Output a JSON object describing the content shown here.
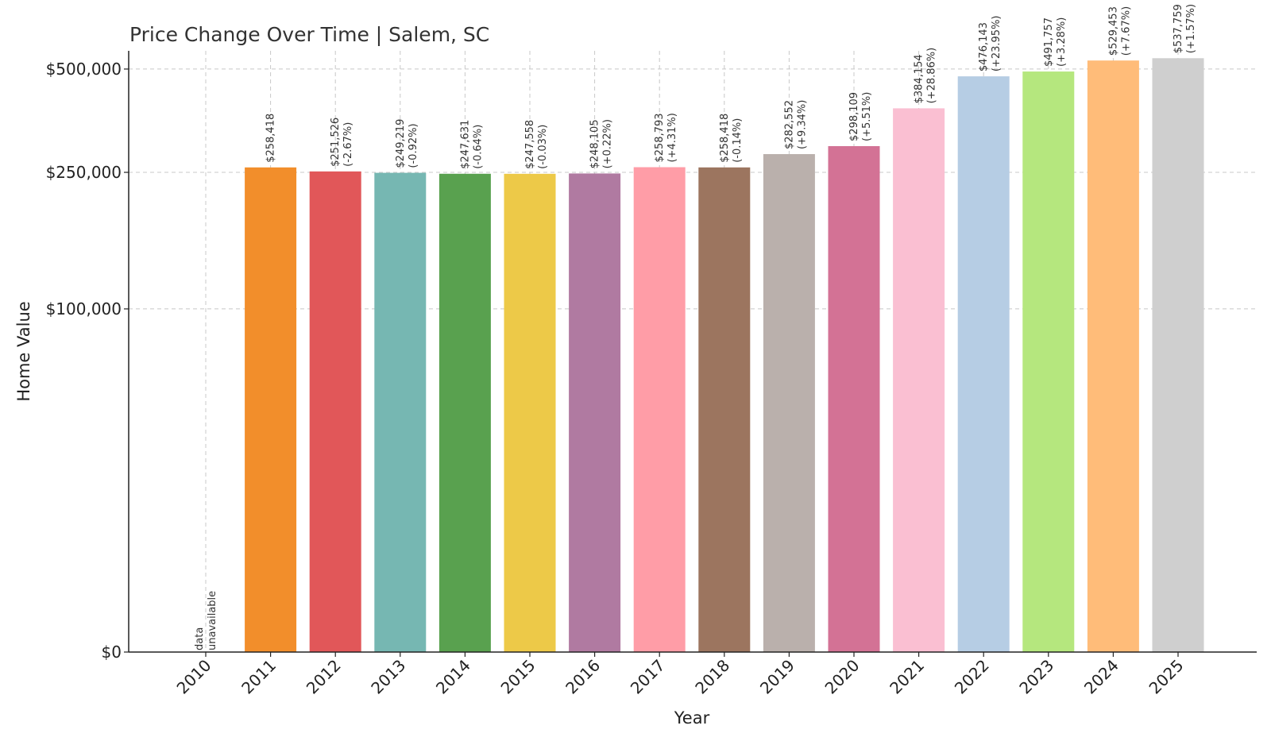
{
  "chart_data": {
    "type": "bar",
    "title": "Price Change Over Time | Salem, SC",
    "xlabel": "Year",
    "ylabel": "Home Value",
    "categories": [
      "2010",
      "2011",
      "2012",
      "2013",
      "2014",
      "2015",
      "2016",
      "2017",
      "2018",
      "2019",
      "2020",
      "2021",
      "2022",
      "2023",
      "2024",
      "2025"
    ],
    "values": [
      null,
      258418,
      251526,
      249219,
      247631,
      247558,
      248105,
      258793,
      258418,
      282552,
      298109,
      384154,
      476143,
      491757,
      529453,
      537759
    ],
    "value_labels": [
      "",
      "$258,418",
      "$251,526",
      "$249,219",
      "$247,631",
      "$247,558",
      "$248,105",
      "$258,793",
      "$258,418",
      "$282,552",
      "$298,109",
      "$384,154",
      "$476,143",
      "$491,757",
      "$529,453",
      "$537,759"
    ],
    "change_labels": [
      "",
      "",
      "(-2.67%)",
      "(-0.92%)",
      "(-0.64%)",
      "(-0.03%)",
      "(+0.22%)",
      "(+4.31%)",
      "(-0.14%)",
      "(+9.34%)",
      "(+5.51%)",
      "(+28.86%)",
      "(+23.95%)",
      "(+3.28%)",
      "(+7.67%)",
      "(+1.57%)"
    ],
    "unavailable_label_lines": [
      "data",
      "unavailable"
    ],
    "colors": [
      "#ff7f0e",
      "#f28e2b",
      "#e15759",
      "#76b7b2",
      "#59a14f",
      "#edc948",
      "#b07aa1",
      "#ff9da7",
      "#9c755f",
      "#bab0ac",
      "#d37295",
      "#fabfd2",
      "#b6cde4",
      "#b5e77e",
      "#ffbc79",
      "#cfcfcf"
    ],
    "yticks": [
      0,
      100000,
      250000,
      500000
    ],
    "ytick_labels": [
      "$0",
      "$100,000",
      "$250,000",
      "$500,000"
    ],
    "ylim": [
      0,
      565000
    ],
    "y_scale": "symlog",
    "grid": true,
    "legend": "none"
  }
}
